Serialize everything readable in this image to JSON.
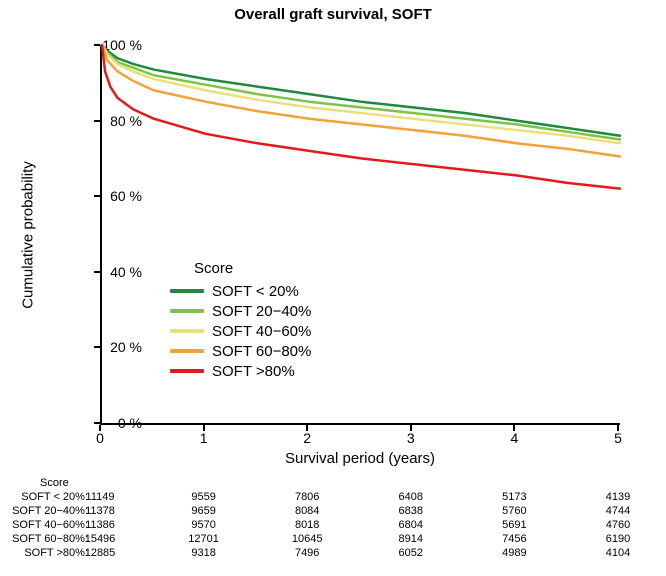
{
  "chart": {
    "type": "line",
    "title": "Overall graft survival, SOFT",
    "title_fontsize": 15,
    "title_weight": "bold",
    "xlabel": "Survival period (years)",
    "ylabel": "Cumulative probability",
    "label_fontsize": 15,
    "background_color": "#ffffff",
    "axis_color": "#000000",
    "xlim": [
      0,
      5
    ],
    "ylim": [
      0,
      100
    ],
    "xticks": [
      0,
      1,
      2,
      3,
      4,
      5
    ],
    "yticks": [
      0,
      20,
      40,
      60,
      80,
      100
    ],
    "ytick_suffix": " %",
    "line_width": 2.5,
    "legend": {
      "title": "Score",
      "position": "inside-lower-left",
      "fontsize": 15
    },
    "series": [
      {
        "label": "SOFT < 20%",
        "color": "#1f8a3b",
        "x": [
          0,
          0.05,
          0.15,
          0.3,
          0.5,
          1,
          1.5,
          2,
          2.5,
          3,
          3.5,
          4,
          4.5,
          5
        ],
        "y": [
          100,
          98.5,
          96.5,
          95,
          93.5,
          91,
          89,
          87,
          85,
          83.5,
          82,
          80,
          78,
          76
        ]
      },
      {
        "label": "SOFT 20−40%",
        "color": "#7fc24a",
        "x": [
          0,
          0.05,
          0.15,
          0.3,
          0.5,
          1,
          1.5,
          2,
          2.5,
          3,
          3.5,
          4,
          4.5,
          5
        ],
        "y": [
          100,
          98,
          95.5,
          94,
          92,
          89.5,
          87,
          85,
          83.5,
          82,
          80.5,
          79,
          77,
          75
        ]
      },
      {
        "label": "SOFT 40−60%",
        "color": "#e9e07a",
        "x": [
          0,
          0.05,
          0.15,
          0.3,
          0.5,
          1,
          1.5,
          2,
          2.5,
          3,
          3.5,
          4,
          4.5,
          5
        ],
        "y": [
          100,
          97.5,
          95,
          93,
          91,
          88,
          85.5,
          83.5,
          82,
          80.5,
          79,
          77.5,
          76,
          74
        ]
      },
      {
        "label": "SOFT 60−80%",
        "color": "#f5a13a",
        "x": [
          0,
          0.05,
          0.15,
          0.3,
          0.5,
          1,
          1.5,
          2,
          2.5,
          3,
          3.5,
          4,
          4.5,
          5
        ],
        "y": [
          100,
          96,
          93,
          90.5,
          88,
          85,
          82.5,
          80.5,
          79,
          77.5,
          76,
          74,
          72.5,
          70.5
        ]
      },
      {
        "label": "SOFT >80%",
        "color": "#e31a1c",
        "x": [
          0,
          0.03,
          0.08,
          0.15,
          0.3,
          0.5,
          1,
          1.5,
          2,
          2.5,
          3,
          3.5,
          4,
          4.5,
          5
        ],
        "y": [
          100,
          93,
          89,
          86,
          83,
          80.5,
          76.5,
          74,
          72,
          70,
          68.5,
          67,
          65.5,
          63.5,
          62
        ]
      }
    ]
  },
  "risk_table": {
    "header": "Score",
    "fontsize": 11,
    "x_positions": [
      0,
      1,
      2,
      3,
      4,
      5
    ],
    "rows": [
      {
        "label": "SOFT < 20%:",
        "values": [
          11149,
          9559,
          7806,
          6408,
          5173,
          4139
        ]
      },
      {
        "label": "SOFT 20−40%:",
        "values": [
          11378,
          9659,
          8084,
          6838,
          5760,
          4744
        ]
      },
      {
        "label": "SOFT 40−60%:",
        "values": [
          11386,
          9570,
          8018,
          6804,
          5691,
          4760
        ]
      },
      {
        "label": "SOFT 60−80%:",
        "values": [
          15496,
          12701,
          10645,
          8914,
          7456,
          6190
        ]
      },
      {
        "label": "SOFT >80%:",
        "values": [
          12885,
          9318,
          7496,
          6052,
          4989,
          4104
        ]
      }
    ]
  }
}
